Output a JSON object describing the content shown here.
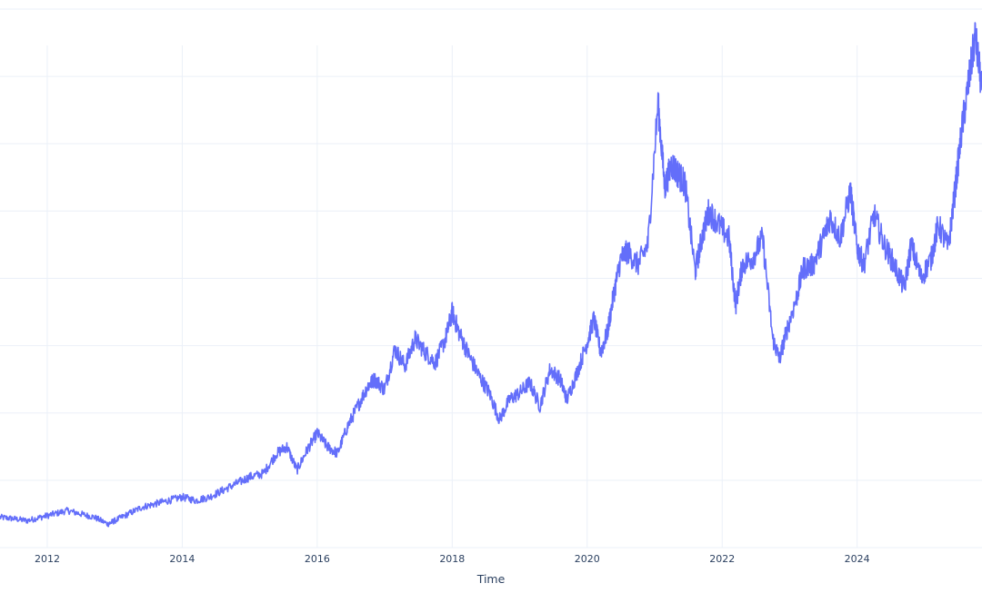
{
  "chart_data": {
    "type": "line",
    "title": "",
    "xlabel": "Time",
    "ylabel": "",
    "grid": true,
    "legend": "none",
    "xlim": [
      2011.3,
      2025.85
    ],
    "ylim": [
      0,
      8
    ],
    "x_ticks": [
      2012,
      2014,
      2016,
      2018,
      2020,
      2022,
      2024
    ],
    "x_tick_labels": [
      "2012",
      "2014",
      "2016",
      "2018",
      "2020",
      "2022",
      "2024"
    ],
    "series": [
      {
        "color": "#636efa",
        "x": [
          2011.3,
          2011.5,
          2011.7,
          2011.9,
          2012.1,
          2012.3,
          2012.5,
          2012.7,
          2012.9,
          2013.0,
          2013.2,
          2013.4,
          2013.6,
          2013.8,
          2014.0,
          2014.2,
          2014.4,
          2014.6,
          2014.8,
          2015.0,
          2015.2,
          2015.4,
          2015.55,
          2015.7,
          2015.85,
          2016.0,
          2016.15,
          2016.3,
          2016.45,
          2016.6,
          2016.75,
          2016.85,
          2017.0,
          2017.15,
          2017.3,
          2017.45,
          2017.6,
          2017.75,
          2017.9,
          2018.0,
          2018.1,
          2018.25,
          2018.4,
          2018.55,
          2018.7,
          2018.85,
          2019.0,
          2019.15,
          2019.3,
          2019.45,
          2019.6,
          2019.7,
          2019.85,
          2020.0,
          2020.1,
          2020.2,
          2020.3,
          2020.4,
          2020.5,
          2020.6,
          2020.75,
          2020.9,
          2021.05,
          2021.15,
          2021.25,
          2021.35,
          2021.45,
          2021.6,
          2021.7,
          2021.8,
          2021.95,
          2022.1,
          2022.2,
          2022.3,
          2022.45,
          2022.6,
          2022.75,
          2022.85,
          2022.95,
          2023.1,
          2023.2,
          2023.35,
          2023.5,
          2023.6,
          2023.75,
          2023.9,
          2024.0,
          2024.1,
          2024.25,
          2024.4,
          2024.55,
          2024.7,
          2024.8,
          2024.95,
          2025.1,
          2025.2,
          2025.35,
          2025.45,
          2025.55,
          2025.65,
          2025.75,
          2025.85
        ],
        "y": [
          0.45,
          0.43,
          0.4,
          0.45,
          0.5,
          0.55,
          0.5,
          0.45,
          0.35,
          0.4,
          0.5,
          0.6,
          0.65,
          0.7,
          0.75,
          0.7,
          0.75,
          0.85,
          0.95,
          1.05,
          1.1,
          1.4,
          1.5,
          1.15,
          1.45,
          1.7,
          1.5,
          1.4,
          1.8,
          2.1,
          2.4,
          2.5,
          2.35,
          2.95,
          2.7,
          3.1,
          2.9,
          2.75,
          3.1,
          3.5,
          3.2,
          2.85,
          2.55,
          2.3,
          1.9,
          2.2,
          2.3,
          2.45,
          2.1,
          2.65,
          2.5,
          2.2,
          2.6,
          3.05,
          3.4,
          2.9,
          3.2,
          3.8,
          4.3,
          4.4,
          4.2,
          4.5,
          6.6,
          5.35,
          5.7,
          5.55,
          5.4,
          4.1,
          4.6,
          5.0,
          4.8,
          4.6,
          3.6,
          4.2,
          4.3,
          4.6,
          3.1,
          2.8,
          3.2,
          3.7,
          4.15,
          4.2,
          4.6,
          4.9,
          4.6,
          5.3,
          4.45,
          4.2,
          4.95,
          4.5,
          4.2,
          3.85,
          4.5,
          4.0,
          4.3,
          4.8,
          4.45,
          5.3,
          6.2,
          6.9,
          7.6,
          6.8
        ]
      }
    ]
  }
}
